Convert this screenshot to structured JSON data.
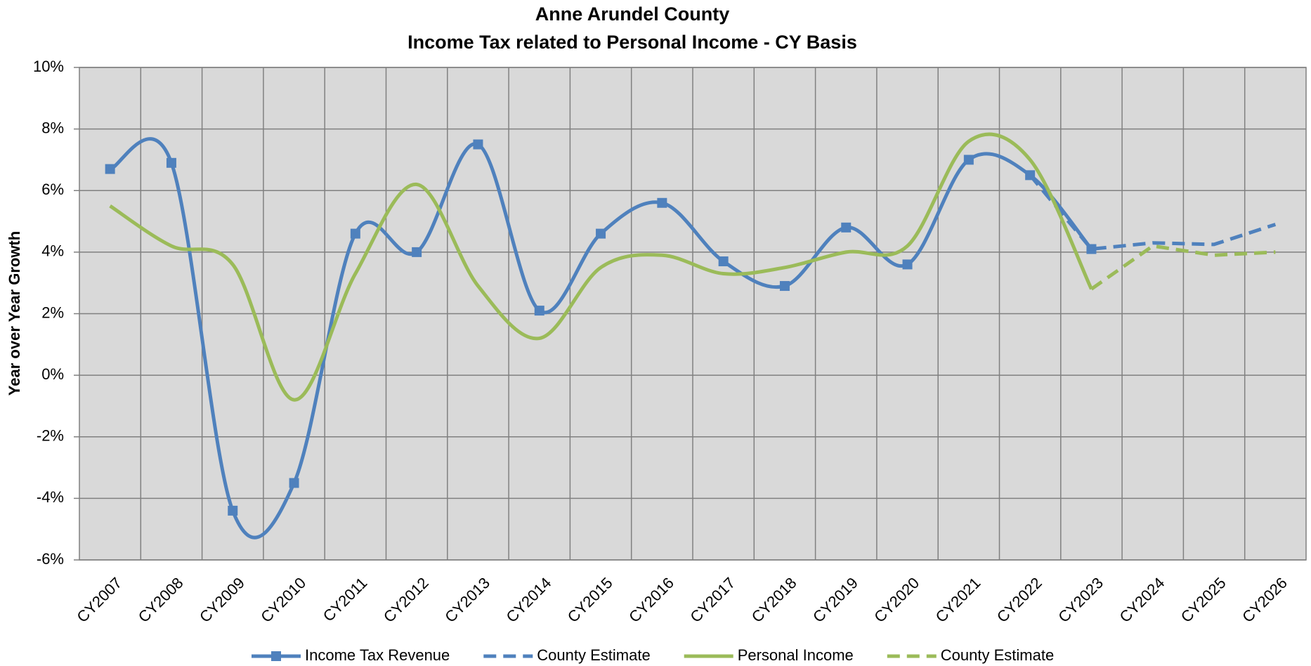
{
  "chart_data": {
    "type": "line",
    "title": "Anne Arundel County",
    "subtitle": "Income Tax related to Personal Income - CY Basis",
    "y_label": "Year over Year Growth",
    "categories": [
      "CY2007",
      "CY2008",
      "CY2009",
      "CY2010",
      "CY2011",
      "CY2012",
      "CY2013",
      "CY2014",
      "CY2015",
      "CY2016",
      "CY2017",
      "CY2018",
      "CY2019",
      "CY2020",
      "CY2021",
      "CY2022",
      "CY2023",
      "CY2024",
      "CY2025",
      "CY2026"
    ],
    "ylim": [
      -6,
      10
    ],
    "yticks": [
      {
        "value": -6,
        "label": "-6%"
      },
      {
        "value": -4,
        "label": "-4%"
      },
      {
        "value": -2,
        "label": "-2%"
      },
      {
        "value": 0,
        "label": "0%"
      },
      {
        "value": 2,
        "label": "2%"
      },
      {
        "value": 4,
        "label": "4%"
      },
      {
        "value": 6,
        "label": "6%"
      },
      {
        "value": 8,
        "label": "8%"
      },
      {
        "value": 10,
        "label": "10%"
      }
    ],
    "grid": true,
    "legend": "bottom",
    "series": [
      {
        "name": "Income Tax Revenue",
        "color": "#4f81bd",
        "smooth": true,
        "marker": "square",
        "values": [
          6.7,
          6.9,
          -4.4,
          -3.5,
          4.6,
          4.0,
          7.5,
          2.1,
          4.6,
          5.6,
          3.7,
          2.9,
          4.8,
          3.6,
          7.0,
          6.5,
          4.1,
          null,
          null,
          null
        ]
      },
      {
        "name": "County Estimate",
        "color": "#4f81bd",
        "dashed": true,
        "values": [
          null,
          null,
          null,
          null,
          null,
          null,
          null,
          null,
          null,
          null,
          null,
          null,
          null,
          null,
          null,
          6.5,
          4.1,
          4.3,
          4.25,
          4.9
        ]
      },
      {
        "name": "Personal Income",
        "color": "#9bbb59",
        "smooth": true,
        "values": [
          5.5,
          4.2,
          3.6,
          -0.8,
          3.3,
          6.2,
          2.9,
          1.2,
          3.5,
          3.9,
          3.3,
          3.5,
          4.0,
          4.2,
          7.6,
          7.0,
          2.8,
          null,
          null,
          null
        ]
      },
      {
        "name": "County Estimate",
        "color": "#9bbb59",
        "dashed": true,
        "values": [
          null,
          null,
          null,
          null,
          null,
          null,
          null,
          null,
          null,
          null,
          null,
          null,
          null,
          null,
          null,
          null,
          2.8,
          4.2,
          3.9,
          4.0
        ]
      }
    ]
  }
}
